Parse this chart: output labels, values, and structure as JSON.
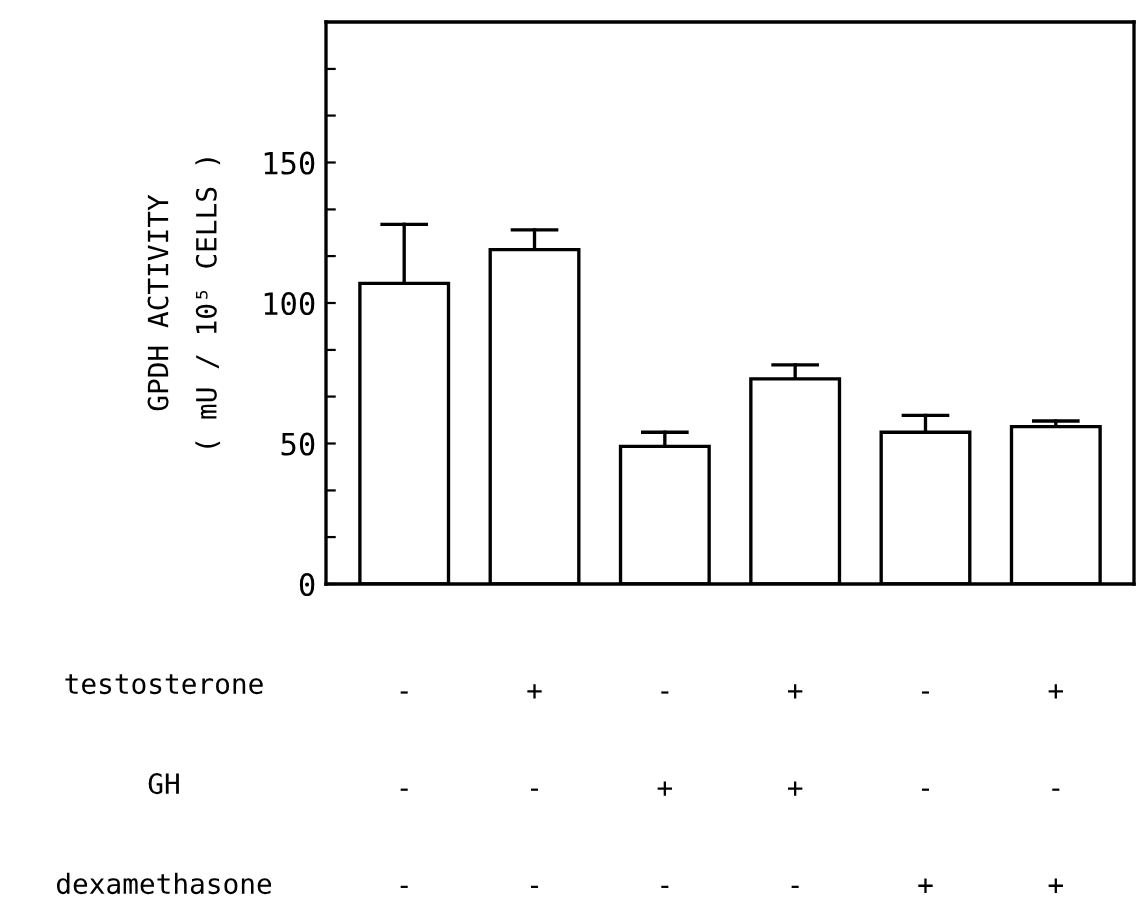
{
  "chart_data": {
    "type": "bar",
    "ylabel": "GPDH ACTIVITY\n( mU / 10⁵ CELLS )",
    "categories": [
      "-\n-\n-",
      "+\n-\n-",
      "-\n+\n-",
      "+\n+\n-",
      "-\n-\n+",
      "+\n-\n+"
    ],
    "values": [
      107,
      119,
      49,
      73,
      54,
      56
    ],
    "errors": [
      [
        107,
        128
      ],
      [
        119,
        126
      ],
      [
        49,
        54
      ],
      [
        73,
        78
      ],
      [
        54,
        60
      ],
      [
        56,
        58
      ]
    ],
    "color": "#ffffff",
    "ylim": [
      0,
      200
    ],
    "yticks": [
      0,
      {
        "value": 16.7,
        "label": null
      },
      {
        "value": 33.3,
        "label": null
      },
      50,
      {
        "value": 66.7,
        "label": null
      },
      {
        "value": 83.3,
        "label": null
      },
      100,
      {
        "value": 116.7,
        "label": null
      },
      {
        "value": 133.3,
        "label": null
      },
      150,
      {
        "value": 166.7,
        "label": null
      },
      {
        "value": 183.3,
        "label": null
      }
    ],
    "annotations": [
      "testosterone",
      "GH",
      "dexamethasone"
    ],
    "grid": false,
    "legend": false
  }
}
